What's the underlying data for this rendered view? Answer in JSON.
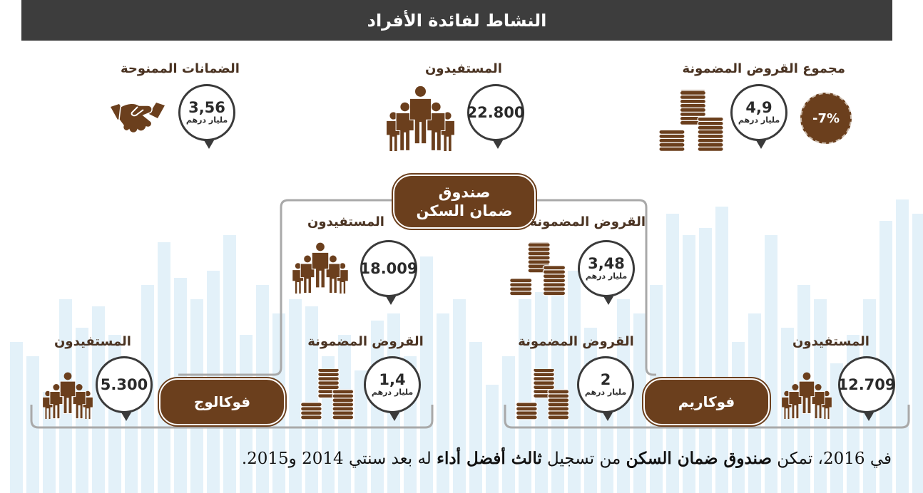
{
  "title": "النشاط لفائدة الأفراد",
  "top": {
    "total_loans": {
      "label": "مجموع القروض المضمونة",
      "value": "4,9",
      "unit": "مليار درهم",
      "change": "-7%"
    },
    "beneficiaries": {
      "label": "المستفيدون",
      "value": "22.800"
    },
    "guarantees": {
      "label": "الضمانات الممنوحة",
      "value": "3,56",
      "unit": "مليار درهم"
    }
  },
  "fund": {
    "line1": "صندوق",
    "line2": "ضمان السكن"
  },
  "fund_left": {
    "label": "المستفيدون",
    "value": "18.009"
  },
  "fund_right": {
    "label": "القروض المضمونة",
    "value": "3,48",
    "unit": "مليار درهم"
  },
  "fogaloge": {
    "name": "فوكالوج",
    "beneficiaries": {
      "label": "المستفيدون",
      "value": "5.300"
    },
    "loans": {
      "label": "القروض المضمونة",
      "value": "1,4",
      "unit": "مليار درهم"
    }
  },
  "fogarim": {
    "name": "فوكاريم",
    "beneficiaries": {
      "label": "المستفيدون",
      "value": "12.709"
    },
    "loans": {
      "label": "القروض المضمونة",
      "value": "2",
      "unit": "مليار درهم"
    }
  },
  "footer": {
    "p1": "في 2016، تمكن ",
    "b1": "صندوق ضمان السكن",
    "p2": " من تسجيل ",
    "b2": "ثالث أفضل أداء",
    "p3": " له بعد سنتي 2014 و2015."
  },
  "colors": {
    "brown": "#6b3f1d",
    "dark": "#3d3d3d",
    "bars": "#e3f1f9"
  }
}
